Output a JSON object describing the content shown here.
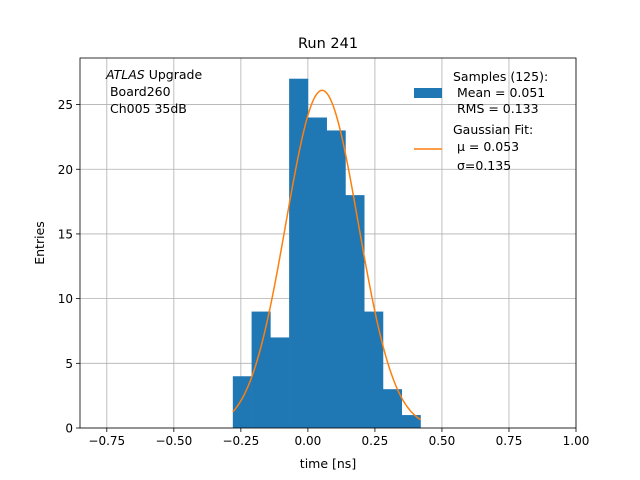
{
  "chart_data": {
    "type": "bar",
    "title": "Run 241",
    "xlabel": "time [ns]",
    "ylabel": "Entries",
    "xlim": [
      -0.85,
      1.0
    ],
    "ylim": [
      0,
      28.6
    ],
    "grid": true,
    "x_ticks": [
      -0.75,
      -0.5,
      -0.25,
      0.0,
      0.25,
      0.5,
      0.75,
      1.0
    ],
    "x_tick_labels": [
      "−0.75",
      "−0.50",
      "−0.25",
      "0.00",
      "0.25",
      "0.50",
      "0.75",
      "1.00"
    ],
    "y_ticks": [
      0,
      5,
      10,
      15,
      20,
      25
    ],
    "y_tick_labels": [
      "0",
      "5",
      "10",
      "15",
      "20",
      "25"
    ],
    "histogram": {
      "bin_edges": [
        -0.28,
        -0.21,
        -0.14,
        -0.07,
        0.0,
        0.07,
        0.14,
        0.21,
        0.28,
        0.35,
        0.42
      ],
      "counts": [
        4,
        9,
        7,
        27,
        24,
        23,
        18,
        9,
        3,
        1
      ],
      "color": "#1f77b4"
    },
    "fit": {
      "mu": 0.053,
      "sigma": 0.135,
      "amplitude": 26.1,
      "x_range": [
        -0.28,
        0.42
      ],
      "color": "#ff7f0e"
    },
    "annotation": {
      "line1_italic": "ATLAS",
      "line1_rest": " Upgrade",
      "line2": " Board260",
      "line3": " Ch005 35dB"
    },
    "legend": {
      "placement": "top-right",
      "samples": {
        "line1": "Samples (125):",
        "line2": " Mean = 0.051",
        "line3": " RMS = 0.133"
      },
      "fit": {
        "line1": "Gaussian Fit:",
        "line2": " μ = 0.053",
        "line3": " σ=0.135"
      }
    }
  }
}
